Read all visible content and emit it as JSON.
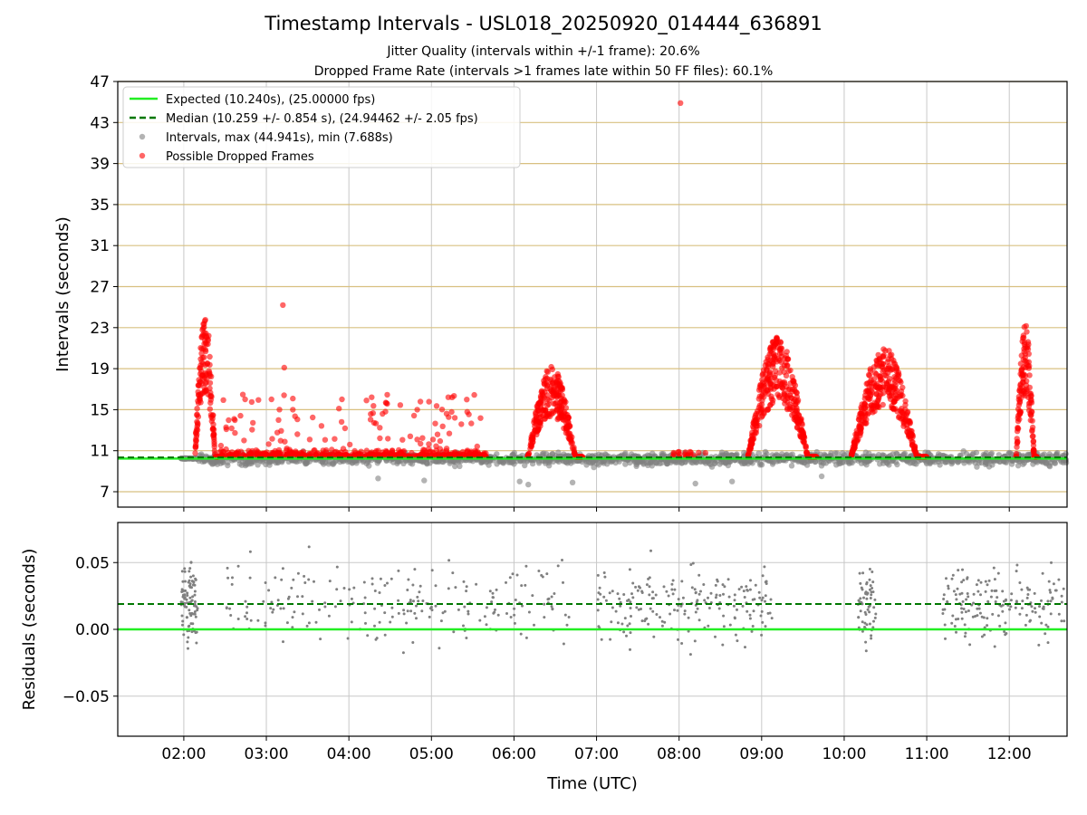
{
  "title": "Timestamp Intervals - USL018_20250920_014444_636891",
  "subtitle1": "Jitter Quality (intervals within +/-1 frame): 20.6%",
  "subtitle2": "Dropped Frame Rate (intervals >1 frames late within 50 FF files): 60.1%",
  "colors": {
    "expected": "#22ee22",
    "median": "#007700",
    "intervals": "#808080",
    "dropped": "#ff0000",
    "hgrid_top": "#d8c080",
    "grid": "#c8c8c8"
  },
  "chart_data": [
    {
      "type": "scatter",
      "panel": "intervals",
      "ylabel": "Intervals (seconds)",
      "ylim": [
        5.5,
        47
      ],
      "xlim": [
        "01:12",
        "12:42"
      ],
      "yticks": [
        "7",
        "11",
        "15",
        "19",
        "23",
        "27",
        "31",
        "35",
        "39",
        "43",
        "47"
      ],
      "grid": true,
      "legend_placement": "upper-left",
      "legend": [
        "Expected (10.240s), (25.00000 fps)",
        "Median (10.259 +/- 0.854 s), (24.94462 +/- 2.05 fps)",
        "Intervals, max (44.941s), min (7.688s)",
        "Possible Dropped Frames"
      ],
      "expected_line": 10.24,
      "median_line": 10.259,
      "interval_max": 44.941,
      "interval_min": 7.688,
      "dropped_frame_clusters": [
        {
          "time_start": "02:08",
          "time_end": "02:25",
          "peak": 24.5
        },
        {
          "time_start": "02:25",
          "time_end": "05:40",
          "peak": 25.2
        },
        {
          "time_start": "06:10",
          "time_end": "06:50",
          "peak": 19.2
        },
        {
          "time_start": "08:00",
          "time_end": "08:03",
          "peak": 44.9
        },
        {
          "time_start": "08:50",
          "time_end": "09:40",
          "peak": 22.1
        },
        {
          "time_start": "10:05",
          "time_end": "11:00",
          "peak": 21.2
        },
        {
          "time_start": "12:05",
          "time_end": "12:20",
          "peak": 23.6
        }
      ]
    },
    {
      "type": "scatter",
      "panel": "residuals",
      "ylabel": "Residuals (seconds)",
      "xlabel": "Time (UTC)",
      "ylim": [
        -0.08,
        0.08
      ],
      "yticks": [
        "−0.05",
        "0.00",
        "0.05"
      ],
      "xticks": [
        "02:00",
        "03:00",
        "04:00",
        "05:00",
        "06:00",
        "07:00",
        "08:00",
        "09:00",
        "10:00",
        "11:00",
        "12:00"
      ],
      "expected_line": 0.0,
      "median_line": 0.019,
      "grid": true
    }
  ]
}
